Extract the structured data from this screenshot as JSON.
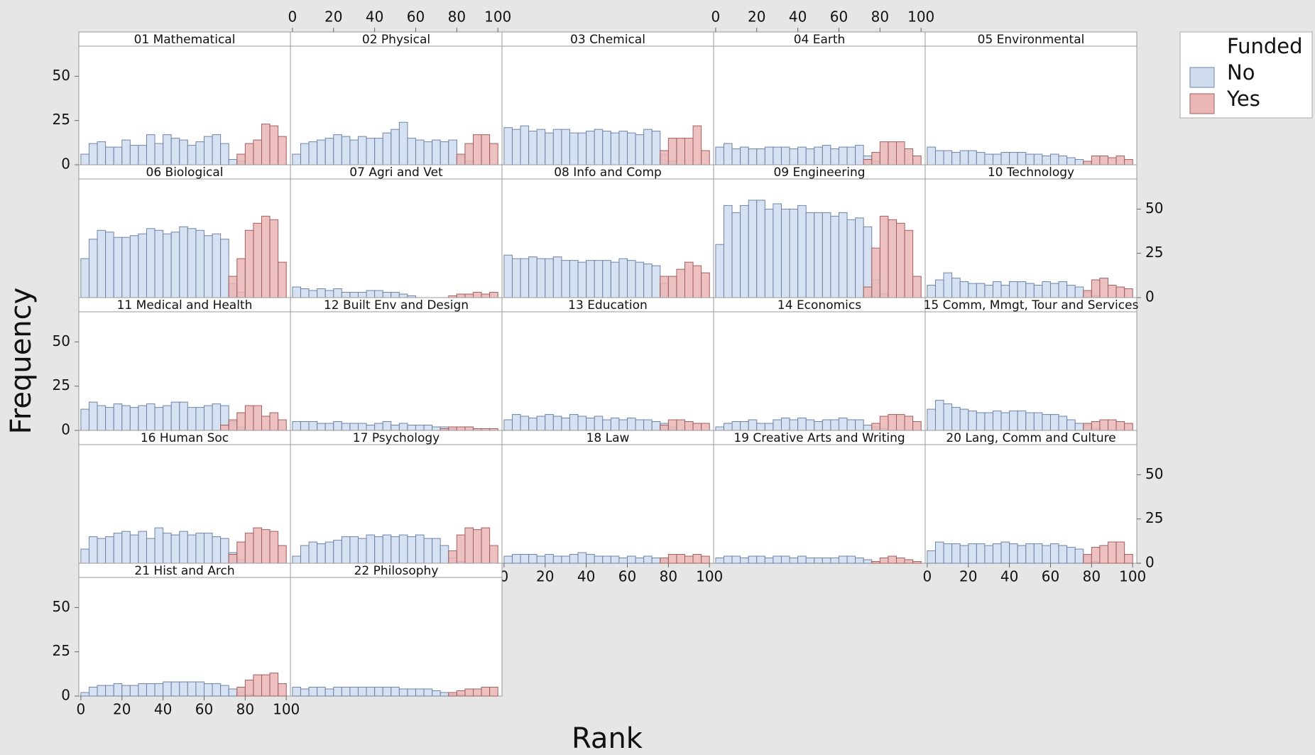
{
  "chart_data": {
    "type": "histogram",
    "xlabel": "Rank",
    "ylabel": "Frequency",
    "legend_title": "Funded",
    "legend": "right",
    "panels": [
      "01 Mathematical",
      "02 Physical",
      "03 Chemical",
      "04 Earth",
      "05 Environmental",
      "06 Biological",
      "07 Agri and Vet",
      "08 Info and Comp",
      "09 Engineering",
      "10 Technology",
      "11 Medical and Health",
      "12 Built Env and Design",
      "13 Education",
      "14 Economics",
      "15 Comm, Mmgt, Tour and Services",
      "16 Human Soc",
      "17 Psychology",
      "18 Law",
      "19 Creative Arts and Writing",
      "20 Lang, Comm and Culture",
      "21 Hist and Arch",
      "22 Philosophy"
    ],
    "bins": [
      0,
      4,
      8,
      12,
      16,
      20,
      24,
      28,
      32,
      36,
      40,
      44,
      48,
      52,
      56,
      60,
      64,
      68,
      72,
      76,
      80,
      84,
      88,
      92,
      96,
      100
    ],
    "xlim": [
      -1,
      102
    ],
    "ylim": [
      0,
      67
    ],
    "xticks": [
      0,
      20,
      40,
      60,
      80,
      100
    ],
    "yticks": [
      0,
      25,
      50
    ],
    "series": [
      {
        "name": "No",
        "color": "#cfdcee",
        "values": [
          [
            6,
            12,
            13,
            10,
            10,
            14,
            11,
            11,
            17,
            12,
            17,
            15,
            14,
            11,
            13,
            16,
            17,
            12,
            3,
            2,
            0,
            0,
            0,
            0,
            0
          ],
          [
            6,
            12,
            13,
            14,
            15,
            17,
            16,
            14,
            16,
            15,
            15,
            18,
            20,
            24,
            15,
            14,
            13,
            14,
            13,
            14,
            5,
            2,
            0,
            0,
            0
          ],
          [
            21,
            20,
            22,
            19,
            20,
            18,
            20,
            20,
            18,
            18,
            19,
            20,
            19,
            18,
            19,
            18,
            17,
            20,
            19,
            6,
            2,
            0,
            0,
            0,
            0
          ],
          [
            10,
            12,
            9,
            10,
            9,
            9,
            10,
            10,
            10,
            9,
            10,
            9,
            10,
            11,
            9,
            10,
            10,
            11,
            5,
            2,
            0,
            0,
            0,
            0,
            0
          ],
          [
            10,
            8,
            8,
            7,
            8,
            8,
            7,
            6,
            6,
            7,
            7,
            7,
            6,
            6,
            5,
            6,
            5,
            4,
            3,
            2,
            0,
            0,
            0,
            0,
            0
          ],
          [
            22,
            33,
            38,
            37,
            34,
            34,
            35,
            36,
            39,
            38,
            36,
            37,
            40,
            39,
            38,
            35,
            36,
            33,
            8,
            3,
            0,
            0,
            0,
            0,
            0
          ],
          [
            6,
            5,
            4,
            5,
            4,
            5,
            3,
            3,
            3,
            4,
            4,
            3,
            3,
            2,
            1,
            0,
            0,
            0,
            0,
            0,
            0,
            0,
            0,
            0,
            0
          ],
          [
            24,
            22,
            22,
            23,
            22,
            22,
            23,
            21,
            21,
            20,
            21,
            21,
            21,
            20,
            22,
            21,
            20,
            19,
            18,
            8,
            0,
            0,
            0,
            0,
            0
          ],
          [
            30,
            52,
            48,
            52,
            55,
            55,
            50,
            53,
            50,
            50,
            52,
            48,
            48,
            48,
            46,
            48,
            44,
            45,
            40,
            10,
            2,
            0,
            0,
            0,
            0
          ],
          [
            7,
            10,
            14,
            11,
            9,
            8,
            8,
            7,
            9,
            7,
            9,
            9,
            8,
            7,
            9,
            8,
            9,
            7,
            6,
            3,
            1,
            0,
            0,
            0,
            0
          ],
          [
            12,
            16,
            14,
            13,
            15,
            14,
            13,
            14,
            15,
            13,
            14,
            16,
            16,
            13,
            13,
            14,
            15,
            14,
            5,
            2,
            0,
            0,
            0,
            0,
            0
          ],
          [
            5,
            5,
            5,
            4,
            4,
            5,
            4,
            4,
            4,
            3,
            4,
            5,
            3,
            4,
            3,
            3,
            3,
            2,
            2,
            1,
            0,
            0,
            0,
            0,
            0
          ],
          [
            6,
            9,
            8,
            7,
            8,
            9,
            8,
            7,
            9,
            8,
            7,
            8,
            6,
            7,
            6,
            7,
            6,
            6,
            5,
            4,
            2,
            0,
            0,
            0,
            0
          ],
          [
            2,
            4,
            5,
            5,
            6,
            4,
            4,
            6,
            7,
            6,
            7,
            6,
            5,
            6,
            6,
            7,
            6,
            6,
            3,
            2,
            1,
            0,
            0,
            0,
            0
          ],
          [
            12,
            17,
            15,
            13,
            12,
            11,
            10,
            10,
            11,
            10,
            11,
            11,
            10,
            10,
            9,
            9,
            8,
            6,
            4,
            3,
            1,
            0,
            0,
            0,
            0
          ],
          [
            8,
            15,
            14,
            15,
            17,
            18,
            16,
            18,
            14,
            20,
            17,
            16,
            18,
            16,
            17,
            17,
            15,
            14,
            6,
            2,
            0,
            0,
            0,
            0,
            0
          ],
          [
            4,
            10,
            12,
            11,
            12,
            13,
            15,
            15,
            14,
            16,
            15,
            16,
            15,
            16,
            15,
            16,
            14,
            14,
            10,
            3,
            1,
            0,
            0,
            0,
            0
          ],
          [
            4,
            5,
            5,
            5,
            4,
            5,
            4,
            4,
            5,
            6,
            5,
            4,
            4,
            4,
            3,
            4,
            3,
            4,
            3,
            2,
            0,
            0,
            0,
            0,
            0
          ],
          [
            3,
            4,
            4,
            3,
            4,
            4,
            3,
            4,
            4,
            3,
            4,
            3,
            3,
            3,
            3,
            4,
            4,
            3,
            2,
            1,
            0,
            0,
            0,
            0,
            0
          ],
          [
            7,
            12,
            11,
            11,
            10,
            11,
            11,
            10,
            11,
            12,
            11,
            10,
            11,
            11,
            10,
            11,
            10,
            9,
            8,
            4,
            1,
            0,
            0,
            0,
            0
          ],
          [
            2,
            5,
            6,
            6,
            7,
            6,
            6,
            7,
            7,
            7,
            8,
            8,
            8,
            8,
            8,
            7,
            7,
            6,
            4,
            2,
            1,
            0,
            0,
            0,
            0
          ],
          [
            5,
            4,
            5,
            5,
            4,
            5,
            5,
            5,
            5,
            5,
            5,
            5,
            5,
            4,
            4,
            4,
            4,
            3,
            2,
            1,
            1,
            0,
            0,
            0,
            0
          ]
        ]
      },
      {
        "name": "Yes",
        "color": "#ebb6b6",
        "values": [
          [
            0,
            0,
            0,
            0,
            0,
            0,
            0,
            0,
            0,
            0,
            0,
            0,
            0,
            0,
            0,
            0,
            0,
            0,
            0,
            6,
            12,
            14,
            23,
            22,
            16
          ],
          [
            0,
            0,
            0,
            0,
            0,
            0,
            0,
            0,
            0,
            0,
            0,
            0,
            0,
            0,
            0,
            0,
            0,
            0,
            0,
            0,
            6,
            12,
            17,
            17,
            12
          ],
          [
            0,
            0,
            0,
            0,
            0,
            0,
            0,
            0,
            0,
            0,
            0,
            0,
            0,
            0,
            0,
            0,
            0,
            0,
            0,
            8,
            15,
            15,
            15,
            22,
            8
          ],
          [
            0,
            0,
            0,
            0,
            0,
            0,
            0,
            0,
            0,
            0,
            0,
            0,
            0,
            0,
            0,
            0,
            0,
            0,
            3,
            7,
            13,
            13,
            13,
            9,
            5
          ],
          [
            0,
            0,
            0,
            0,
            0,
            0,
            0,
            0,
            0,
            0,
            0,
            0,
            0,
            0,
            0,
            0,
            0,
            0,
            0,
            2,
            5,
            5,
            4,
            5,
            3
          ],
          [
            0,
            0,
            0,
            0,
            0,
            0,
            0,
            0,
            0,
            0,
            0,
            0,
            0,
            0,
            0,
            0,
            0,
            0,
            12,
            22,
            38,
            42,
            46,
            44,
            20
          ],
          [
            0,
            0,
            0,
            0,
            0,
            0,
            0,
            0,
            0,
            0,
            0,
            0,
            0,
            0,
            0,
            0,
            0,
            0,
            0,
            1,
            2,
            2,
            3,
            2,
            3
          ],
          [
            0,
            0,
            0,
            0,
            0,
            0,
            0,
            0,
            0,
            0,
            0,
            0,
            0,
            0,
            0,
            0,
            0,
            0,
            0,
            12,
            12,
            16,
            20,
            18,
            14
          ],
          [
            0,
            0,
            0,
            0,
            0,
            0,
            0,
            0,
            0,
            0,
            0,
            0,
            0,
            0,
            0,
            0,
            0,
            0,
            6,
            28,
            46,
            44,
            42,
            38,
            12
          ],
          [
            0,
            0,
            0,
            0,
            0,
            0,
            0,
            0,
            0,
            0,
            0,
            0,
            0,
            0,
            0,
            0,
            0,
            0,
            0,
            4,
            10,
            11,
            7,
            6,
            5
          ],
          [
            0,
            0,
            0,
            0,
            0,
            0,
            0,
            0,
            0,
            0,
            0,
            0,
            0,
            0,
            0,
            0,
            0,
            3,
            6,
            10,
            14,
            14,
            8,
            10,
            6
          ],
          [
            0,
            0,
            0,
            0,
            0,
            0,
            0,
            0,
            0,
            0,
            0,
            0,
            0,
            0,
            0,
            0,
            0,
            0,
            1,
            2,
            2,
            2,
            1,
            1,
            1
          ],
          [
            0,
            0,
            0,
            0,
            0,
            0,
            0,
            0,
            0,
            0,
            0,
            0,
            0,
            0,
            0,
            0,
            0,
            0,
            0,
            3,
            6,
            6,
            5,
            4,
            4
          ],
          [
            0,
            0,
            0,
            0,
            0,
            0,
            0,
            0,
            0,
            0,
            0,
            0,
            0,
            0,
            0,
            0,
            0,
            0,
            0,
            4,
            8,
            9,
            9,
            8,
            5
          ],
          [
            0,
            0,
            0,
            0,
            0,
            0,
            0,
            0,
            0,
            0,
            0,
            0,
            0,
            0,
            0,
            0,
            0,
            0,
            0,
            4,
            5,
            6,
            6,
            5,
            4
          ],
          [
            0,
            0,
            0,
            0,
            0,
            0,
            0,
            0,
            0,
            0,
            0,
            0,
            0,
            0,
            0,
            0,
            0,
            0,
            5,
            12,
            17,
            20,
            19,
            18,
            10
          ],
          [
            0,
            0,
            0,
            0,
            0,
            0,
            0,
            0,
            0,
            0,
            0,
            0,
            0,
            0,
            0,
            0,
            0,
            0,
            0,
            7,
            16,
            20,
            19,
            20,
            10
          ],
          [
            0,
            0,
            0,
            0,
            0,
            0,
            0,
            0,
            0,
            0,
            0,
            0,
            0,
            0,
            0,
            0,
            0,
            0,
            0,
            3,
            5,
            5,
            4,
            5,
            4
          ],
          [
            0,
            0,
            0,
            0,
            0,
            0,
            0,
            0,
            0,
            0,
            0,
            0,
            0,
            0,
            0,
            0,
            0,
            0,
            0,
            1,
            3,
            4,
            3,
            2,
            1
          ],
          [
            0,
            0,
            0,
            0,
            0,
            0,
            0,
            0,
            0,
            0,
            0,
            0,
            0,
            0,
            0,
            0,
            0,
            0,
            0,
            5,
            9,
            10,
            12,
            12,
            5
          ],
          [
            0,
            0,
            0,
            0,
            0,
            0,
            0,
            0,
            0,
            0,
            0,
            0,
            0,
            0,
            0,
            0,
            0,
            0,
            0,
            5,
            9,
            12,
            12,
            13,
            7
          ],
          [
            0,
            0,
            0,
            0,
            0,
            0,
            0,
            0,
            0,
            0,
            0,
            0,
            0,
            0,
            0,
            0,
            0,
            0,
            0,
            2,
            3,
            4,
            4,
            5,
            5
          ]
        ]
      }
    ]
  }
}
